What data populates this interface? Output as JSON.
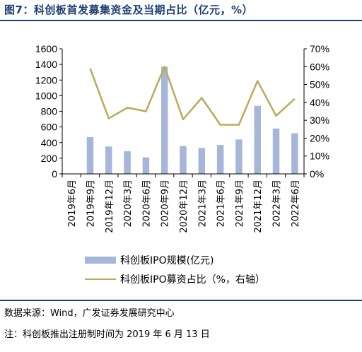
{
  "figure": {
    "title": "图7：科创板首发募集资金及当期占比（亿元，%）",
    "source_note": "数据来源：Wind，广发证券发展研究中心",
    "footnote": "注：科创板推出注册制时间为 2019 年 6 月 13 日"
  },
  "colors": {
    "bar": "#a6b6d8",
    "line": "#b9ab58",
    "title": "#1b3f73",
    "axis": "#000000"
  },
  "chart_data": {
    "type": "bar",
    "categories": [
      "2019年6月",
      "2019年9月",
      "2019年12月",
      "2020年3月",
      "2020年6月",
      "2020年9月",
      "2020年12月",
      "2021年3月",
      "2021年6月",
      "2021年9月",
      "2021年12月",
      "2022年3月",
      "2022年6月"
    ],
    "series": [
      {
        "name": "科创板IPO规模(亿元)",
        "type": "bar",
        "axis": "left",
        "values": [
          0,
          470,
          350,
          290,
          210,
          1370,
          355,
          330,
          370,
          440,
          870,
          580,
          520
        ]
      },
      {
        "name": "科创板IPO募资占比（%，右轴）",
        "type": "line",
        "axis": "right",
        "values": [
          null,
          59,
          31,
          37,
          35,
          60,
          30.5,
          42.5,
          27.5,
          27.5,
          52,
          32.5,
          42
        ]
      }
    ],
    "y_left": {
      "ylim": [
        0,
        1600
      ],
      "ticks": [
        "0",
        "200",
        "400",
        "600",
        "800",
        "1000",
        "1200",
        "1400",
        "1600"
      ]
    },
    "y_right": {
      "ylim": [
        0,
        70
      ],
      "ticks": [
        "0%",
        "10%",
        "20%",
        "30%",
        "40%",
        "50%",
        "60%",
        "70%"
      ]
    },
    "grid": false,
    "legend": "bottom"
  }
}
